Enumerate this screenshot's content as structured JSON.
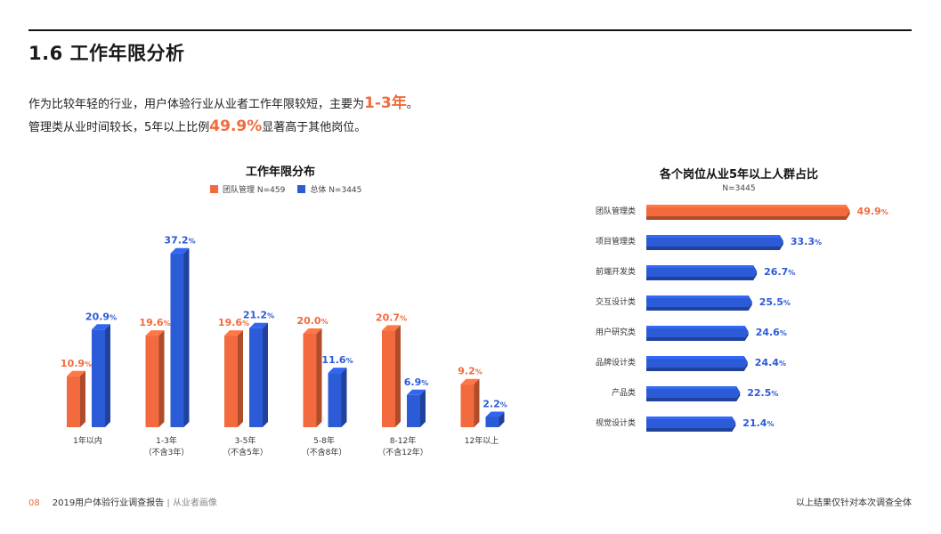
{
  "header": {
    "title": "1.6 工作年限分析"
  },
  "intro": {
    "line1_pre": "作为比较年轻的行业，用户体验行业从业者工作年限较短，主要为",
    "line1_hl": "1-3年",
    "line1_post": "。",
    "line2_pre": "管理类从业时间较长，5年以上比例",
    "line2_hl": "49.9%",
    "line2_post": "显著高于其他岗位。"
  },
  "colors": {
    "orange": "#f26a3d",
    "blue": "#2c5bd8",
    "orange_dark": "#d9532a",
    "blue_dark": "#1f45b0"
  },
  "chart_data": [
    {
      "type": "bar",
      "title": "工作年限分布",
      "categories": [
        "1年以内",
        "1-3年\n（不含3年）",
        "3-5年\n（不含5年）",
        "5-8年\n（不含8年）",
        "8-12年\n（不含12年）",
        "12年以上"
      ],
      "series": [
        {
          "name": "团队管理 N=459",
          "values": [
            10.9,
            19.6,
            19.6,
            20.0,
            20.7,
            9.2
          ]
        },
        {
          "name": "总体 N=3445",
          "values": [
            20.9,
            37.2,
            21.2,
            11.6,
            6.9,
            2.2
          ]
        }
      ],
      "unit": "%",
      "ylim": [
        0,
        40
      ],
      "grid": false,
      "legend": "top-center"
    },
    {
      "type": "bar",
      "orientation": "horizontal",
      "title": "各个岗位从业5年以上人群占比",
      "subtitle": "N=3445",
      "categories": [
        "团队管理类",
        "项目管理类",
        "前端开发类",
        "交互设计类",
        "用户研究类",
        "品牌设计类",
        "产品类",
        "视觉设计类"
      ],
      "values": [
        49.9,
        33.3,
        26.7,
        25.5,
        24.6,
        24.4,
        22.5,
        21.4
      ],
      "highlight": "团队管理类",
      "unit": "%",
      "xlim": [
        0,
        50
      ],
      "grid": false
    }
  ],
  "footer": {
    "page": "08",
    "report": "2019用户体验行业调查报告",
    "divider": "|",
    "section": "从业者画像",
    "note": "以上结果仅针对本次调查全体"
  }
}
